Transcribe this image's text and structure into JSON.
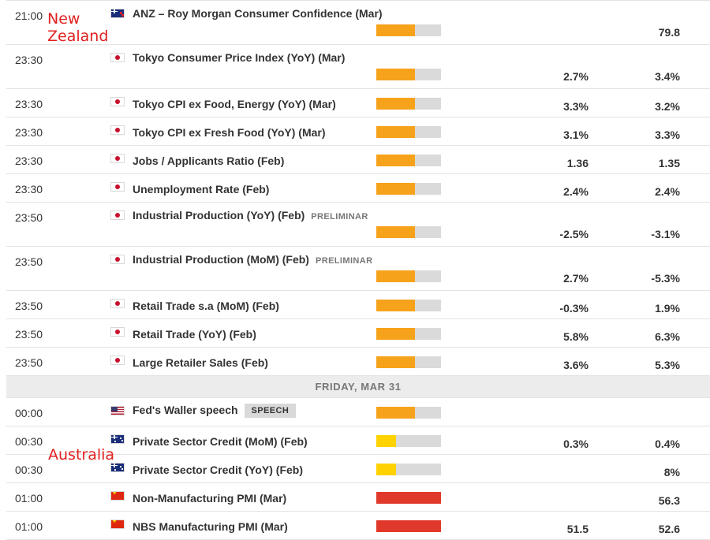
{
  "annotations": {
    "new_zealand": "New\nZealand",
    "australia": "Australia"
  },
  "colors": {
    "orange": "#f7a21b",
    "yellow": "#ffd200",
    "red": "#e0392b",
    "impact_track": "#dadada"
  },
  "day_header": "FRIDAY, MAR 31",
  "events_block_1": [
    {
      "time": "21:00",
      "flag": "nz-flag-icon",
      "name": "ANZ – Roy Morgan Consumer Confidence (Mar)",
      "tag": "",
      "impact": "medium",
      "impact_fill": 0.6,
      "actual": "",
      "forecast": "79.8",
      "layout": "double"
    },
    {
      "time": "23:30",
      "flag": "jp-flag-icon",
      "name": "Tokyo Consumer Price Index (YoY) (Mar)",
      "tag": "",
      "impact": "medium",
      "impact_fill": 0.6,
      "actual": "2.7%",
      "forecast": "3.4%",
      "layout": "double"
    },
    {
      "time": "23:30",
      "flag": "jp-flag-icon",
      "name": "Tokyo CPI ex Food, Energy (YoY) (Mar)",
      "tag": "",
      "impact": "medium",
      "impact_fill": 0.6,
      "actual": "3.3%",
      "forecast": "3.2%",
      "layout": "single"
    },
    {
      "time": "23:30",
      "flag": "jp-flag-icon",
      "name": "Tokyo CPI ex Fresh Food (YoY) (Mar)",
      "tag": "",
      "impact": "medium",
      "impact_fill": 0.6,
      "actual": "3.1%",
      "forecast": "3.3%",
      "layout": "single"
    },
    {
      "time": "23:30",
      "flag": "jp-flag-icon",
      "name": "Jobs / Applicants Ratio (Feb)",
      "tag": "",
      "impact": "medium",
      "impact_fill": 0.6,
      "actual": "1.36",
      "forecast": "1.35",
      "layout": "single"
    },
    {
      "time": "23:30",
      "flag": "jp-flag-icon",
      "name": "Unemployment Rate (Feb)",
      "tag": "",
      "impact": "medium",
      "impact_fill": 0.6,
      "actual": "2.4%",
      "forecast": "2.4%",
      "layout": "single"
    },
    {
      "time": "23:50",
      "flag": "jp-flag-icon",
      "name": "Industrial Production (YoY) (Feb)",
      "tag": "PRELIMINAR",
      "impact": "medium",
      "impact_fill": 0.6,
      "actual": "-2.5%",
      "forecast": "-3.1%",
      "layout": "double"
    },
    {
      "time": "23:50",
      "flag": "jp-flag-icon",
      "name": "Industrial Production (MoM) (Feb)",
      "tag": "PRELIMINAR",
      "impact": "medium",
      "impact_fill": 0.6,
      "actual": "2.7%",
      "forecast": "-5.3%",
      "layout": "double"
    },
    {
      "time": "23:50",
      "flag": "jp-flag-icon",
      "name": "Retail Trade s.a (MoM) (Feb)",
      "tag": "",
      "impact": "medium",
      "impact_fill": 0.6,
      "actual": "-0.3%",
      "forecast": "1.9%",
      "layout": "single"
    },
    {
      "time": "23:50",
      "flag": "jp-flag-icon",
      "name": "Retail Trade (YoY) (Feb)",
      "tag": "",
      "impact": "medium",
      "impact_fill": 0.6,
      "actual": "5.8%",
      "forecast": "6.3%",
      "layout": "single"
    },
    {
      "time": "23:50",
      "flag": "jp-flag-icon",
      "name": "Large Retailer Sales (Feb)",
      "tag": "",
      "impact": "medium",
      "impact_fill": 0.6,
      "actual": "3.6%",
      "forecast": "5.3%",
      "layout": "single"
    }
  ],
  "events_block_2": [
    {
      "time": "00:00",
      "flag": "us-flag-icon",
      "name": "Fed's Waller speech",
      "tag_box": "SPEECH",
      "impact": "medium",
      "impact_fill": 0.6,
      "actual": "",
      "forecast": "",
      "layout": "single"
    },
    {
      "time": "00:30",
      "flag": "au-flag-icon",
      "name": "Private Sector Credit (MoM) (Feb)",
      "tag": "",
      "impact": "low",
      "impact_fill": 0.3,
      "actual": "0.3%",
      "forecast": "0.4%",
      "layout": "single"
    },
    {
      "time": "00:30",
      "flag": "au-flag-icon",
      "name": "Private Sector Credit (YoY) (Feb)",
      "tag": "",
      "impact": "low",
      "impact_fill": 0.3,
      "actual": "",
      "forecast": "8%",
      "layout": "single"
    },
    {
      "time": "01:00",
      "flag": "cn-flag-icon",
      "name": "Non-Manufacturing PMI (Mar)",
      "tag": "",
      "impact": "high",
      "impact_fill": 1.0,
      "actual": "",
      "forecast": "56.3",
      "layout": "single"
    },
    {
      "time": "01:00",
      "flag": "cn-flag-icon",
      "name": "NBS Manufacturing PMI (Mar)",
      "tag": "",
      "impact": "high",
      "impact_fill": 1.0,
      "actual": "51.5",
      "forecast": "52.6",
      "layout": "single"
    }
  ]
}
